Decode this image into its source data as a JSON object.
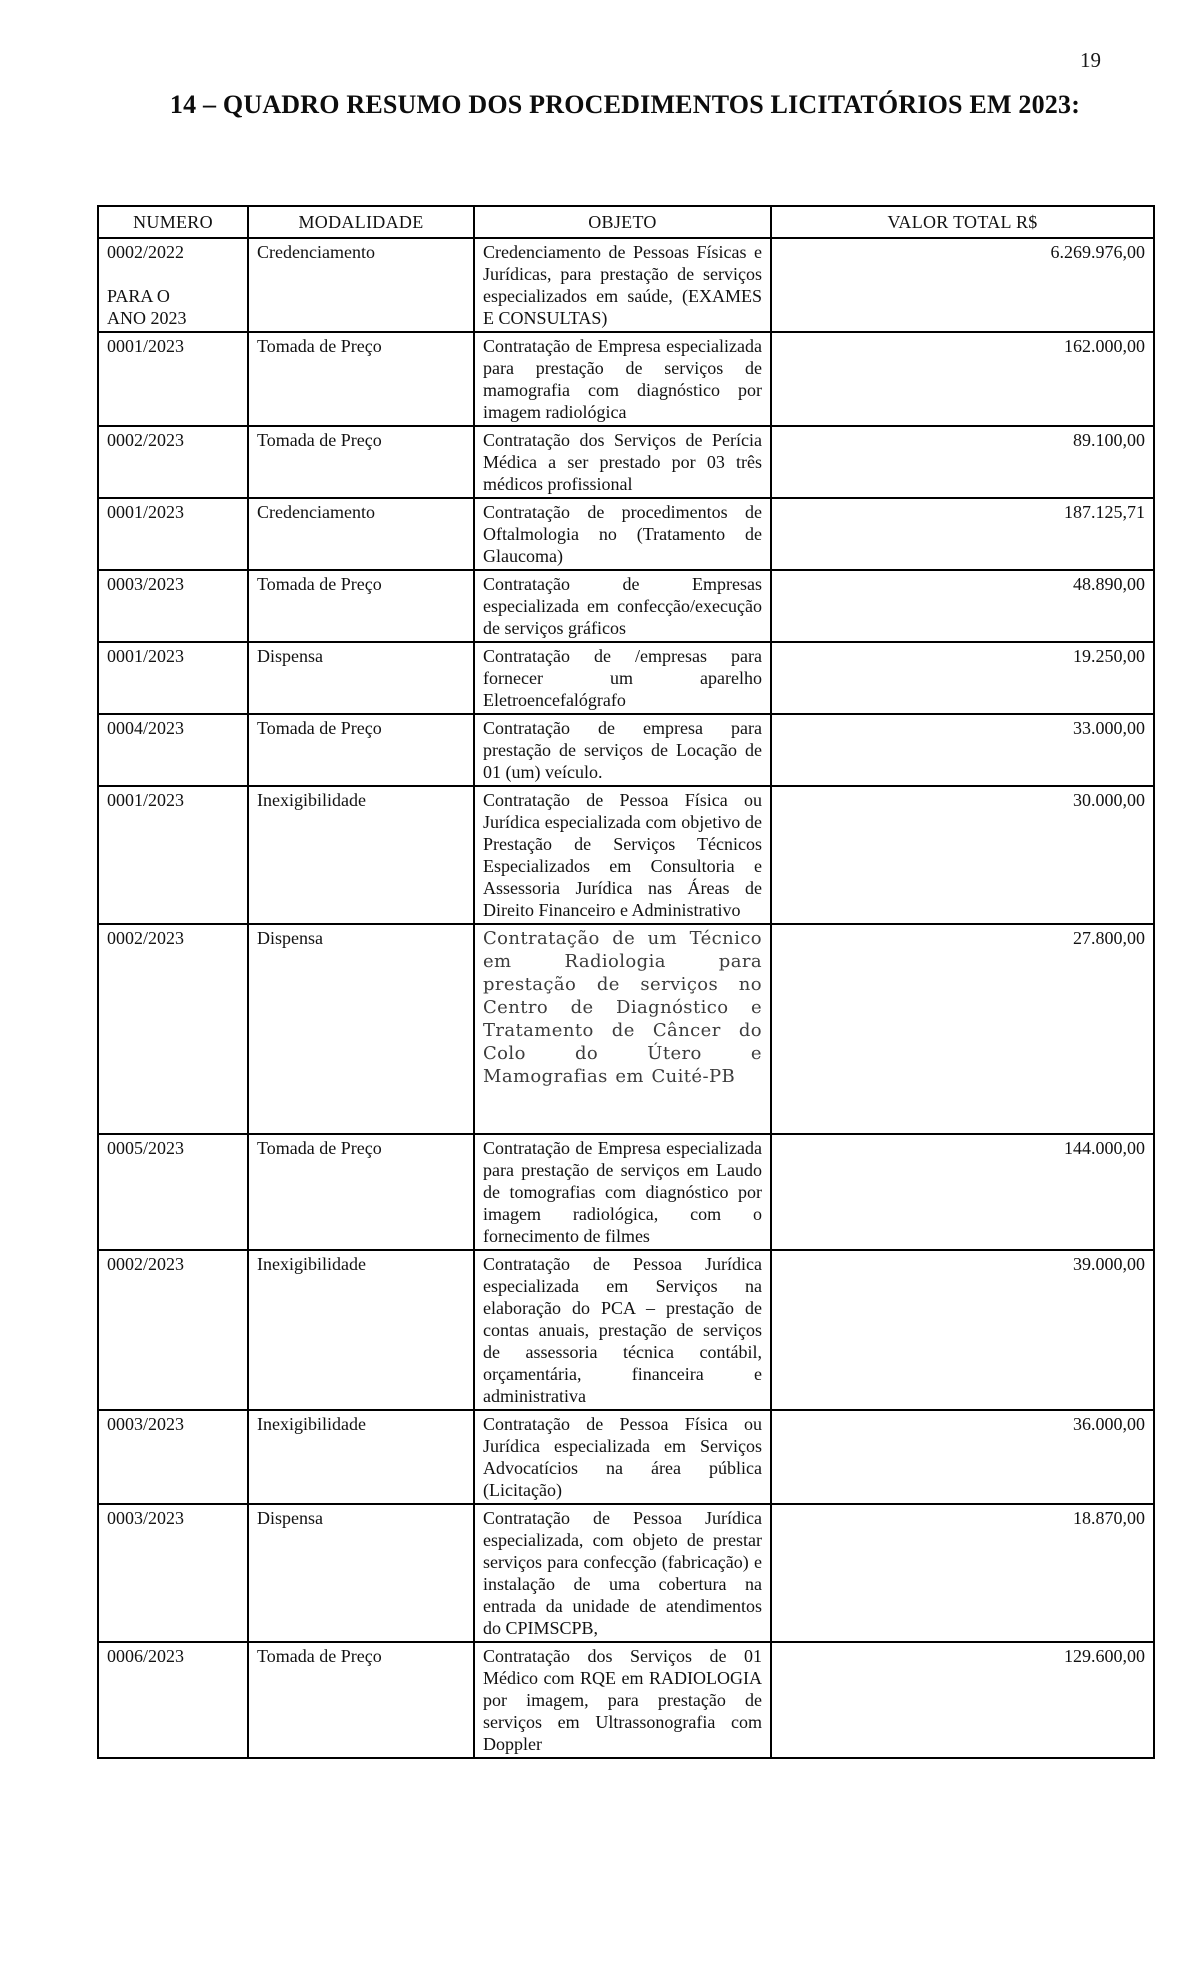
{
  "page": {
    "page_number": "19",
    "title": "14 – QUADRO RESUMO DOS PROCEDIMENTOS LICITATÓRIOS EM 2023:"
  },
  "table": {
    "headers": [
      "NUMERO",
      "MODALIDADE",
      "OBJETO",
      "VALOR TOTAL R$"
    ],
    "rows": [
      {
        "numero": "0002/2022\n\nPARA O\nANO 2023",
        "modalidade": "Credenciamento",
        "objeto": "Credenciamento de Pessoas Físicas e Jurídicas, para prestação de serviços especializados em saúde, (EXAMES E CONSULTAS)",
        "valor": "6.269.976,00",
        "style": "normal"
      },
      {
        "numero": "0001/2023",
        "modalidade": "Tomada de Preço",
        "objeto": "Contratação de Empresa especializada para prestação de serviços de mamografia com diagnóstico por imagem radiológica",
        "valor": "162.000,00",
        "style": "normal"
      },
      {
        "numero": "0002/2023",
        "modalidade": "Tomada de Preço",
        "objeto": "Contratação dos Serviços de Perícia Médica a ser prestado por 03 três médicos profissional",
        "valor": "89.100,00",
        "style": "normal"
      },
      {
        "numero": "0001/2023",
        "modalidade": "Credenciamento",
        "objeto": "Contratação de procedimentos de Oftalmologia no (Tratamento de Glaucoma)",
        "valor": "187.125,71",
        "style": "normal"
      },
      {
        "numero": "0003/2023",
        "modalidade": "Tomada de Preço",
        "objeto": "Contratação de Empresas especializada em confecção/execução de serviços gráficos",
        "valor": "48.890,00",
        "style": "normal"
      },
      {
        "numero": "0001/2023",
        "modalidade": "Dispensa",
        "objeto": "Contratação de /empresas para fornecer um aparelho Eletroencefalógrafo",
        "valor": "19.250,00",
        "style": "normal"
      },
      {
        "numero": "0004/2023",
        "modalidade": "Tomada de Preço",
        "objeto": "Contratação de empresa para prestação de serviços de Locação de 01 (um) veículo.",
        "valor": "33.000,00",
        "style": "normal"
      },
      {
        "numero": "0001/2023",
        "modalidade": "Inexigibilidade",
        "objeto": "Contratação de Pessoa Física ou Jurídica especializada com objetivo de Prestação de Serviços Técnicos Especializados em Consultoria e Assessoria Jurídica nas Áreas de Direito Financeiro e Administrativo",
        "valor": "30.000,00",
        "style": "normal"
      },
      {
        "numero": "0002/2023",
        "modalidade": "Dispensa",
        "objeto": "Contratação de um Técnico em Radiologia para prestação de serviços no Centro de Diagnóstico e Tratamento de Câncer do Colo do Útero e Mamografias em Cuité-PB",
        "valor": "27.800,00",
        "style": "alt"
      },
      {
        "numero": "0005/2023",
        "modalidade": "Tomada de Preço",
        "objeto": "Contratação de Empresa especializada para prestação de serviços em Laudo de tomografias com diagnóstico por imagem radiológica, com o fornecimento de filmes",
        "valor": "144.000,00",
        "style": "normal"
      },
      {
        "numero": "0002/2023",
        "modalidade": "Inexigibilidade",
        "objeto": "Contratação de Pessoa Jurídica especializada em Serviços na elaboração do PCA – prestação de contas anuais, prestação de serviços de assessoria técnica contábil, orçamentária, financeira e administrativa",
        "valor": "39.000,00",
        "style": "normal"
      },
      {
        "numero": "0003/2023",
        "modalidade": "Inexigibilidade",
        "objeto": "Contratação de Pessoa Física ou Jurídica especializada em Serviços Advocatícios na área pública (Licitação)",
        "valor": "36.000,00",
        "style": "normal"
      },
      {
        "numero": "0003/2023",
        "modalidade": "Dispensa",
        "objeto": "Contratação de Pessoa Jurídica especializada, com objeto de prestar serviços para confecção (fabricação) e instalação de uma cobertura na entrada da unidade de atendimentos do CPIMSCPB,",
        "valor": "18.870,00",
        "style": "normal"
      },
      {
        "numero": "0006/2023",
        "modalidade": "Tomada de Preço",
        "objeto": "Contratação dos Serviços de 01 Médico com RQE em RADIOLOGIA por imagem, para prestação de serviços em Ultrassonografia com Doppler",
        "valor": "129.600,00",
        "style": "normal"
      }
    ]
  }
}
